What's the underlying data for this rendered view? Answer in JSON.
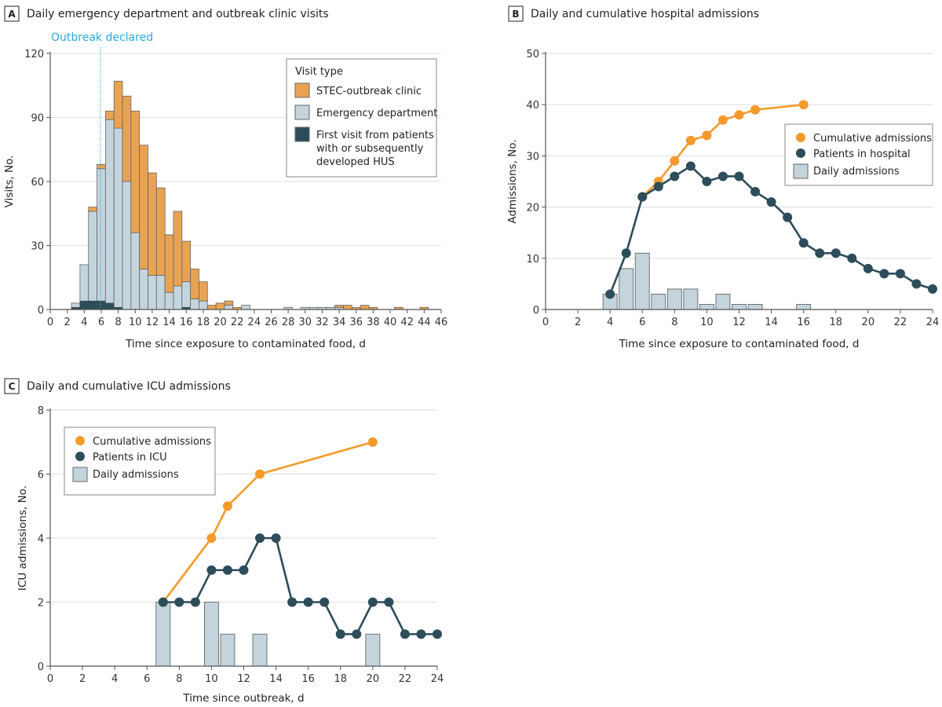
{
  "colors": {
    "stec_bar": "#e8a352",
    "ed_bar": "#c3d4dd",
    "hus_bar": "#2b4d5a",
    "cumulative_line": "#f39a2a",
    "patients_line": "#2c4d59",
    "outbreak_line": "#29a9e0",
    "grid": "#e2e2e2"
  },
  "chart_data": [
    {
      "panel": "A",
      "type": "bar",
      "stacked": true,
      "title": "Daily emergency department and outbreak clinic visits",
      "xlabel": "Time since exposure to contaminated food, d",
      "ylabel": "Visits, No.",
      "xlim": [
        0,
        46
      ],
      "ylim": [
        0,
        120
      ],
      "xticks": [
        "0",
        "2",
        "4",
        "6",
        "8",
        "10",
        "12",
        "14",
        "16",
        "18",
        "20",
        "22",
        "24",
        "26",
        "28",
        "30",
        "32",
        "34",
        "36",
        "38",
        "40",
        "42",
        "44",
        "46"
      ],
      "yticks": [
        "0",
        "30",
        "60",
        "90",
        "120"
      ],
      "grid": "horizontal",
      "annotation": {
        "label": "Outbreak declared",
        "x": 6
      },
      "legend": {
        "title": "Visit type",
        "placement": "top-right",
        "entries": [
          "STEC-outbreak clinic",
          "Emergency department",
          "First visit from patients",
          "with or subsequently",
          "developed HUS"
        ]
      },
      "x": [
        3,
        4,
        5,
        6,
        7,
        8,
        9,
        10,
        11,
        12,
        13,
        14,
        15,
        16,
        17,
        18,
        19,
        20,
        21,
        22,
        23,
        28,
        30,
        31,
        32,
        33,
        34,
        35,
        36,
        37,
        38,
        41,
        44
      ],
      "series": [
        {
          "name": "Emergency department",
          "values": [
            3,
            21,
            46,
            66,
            89,
            85,
            60,
            36,
            19,
            16,
            16,
            8,
            11,
            13,
            5,
            4,
            0,
            0,
            2,
            0,
            2,
            1,
            1,
            1,
            1,
            1,
            1,
            0,
            0,
            0,
            0,
            0,
            0
          ]
        },
        {
          "name": "STEC-outbreak clinic",
          "values": [
            0,
            0,
            2,
            2,
            4,
            22,
            40,
            57,
            58,
            48,
            41,
            27,
            35,
            19,
            14,
            9,
            2,
            3,
            2,
            1,
            0,
            0,
            0,
            0,
            0,
            0,
            1,
            2,
            1,
            2,
            1,
            1,
            1
          ]
        },
        {
          "name": "First visit from patients with or subsequently developed HUS",
          "values": [
            1,
            4,
            4,
            4,
            3,
            1,
            0,
            0,
            0,
            0,
            0,
            0,
            0,
            1,
            0,
            0,
            0,
            0,
            0,
            0,
            0,
            0,
            0,
            0,
            0,
            0,
            0,
            0,
            0,
            0,
            0,
            0,
            0
          ]
        }
      ]
    },
    {
      "panel": "B",
      "type": "bar+line",
      "title": "Daily and cumulative hospital admissions",
      "xlabel": "Time since exposure to contaminated food, d",
      "ylabel": "Admissions, No.",
      "xlim": [
        0,
        24
      ],
      "ylim": [
        0,
        50
      ],
      "xticks": [
        "0",
        "2",
        "4",
        "6",
        "8",
        "10",
        "12",
        "14",
        "16",
        "18",
        "20",
        "22",
        "24"
      ],
      "yticks": [
        "0",
        "10",
        "20",
        "30",
        "40",
        "50"
      ],
      "grid": "horizontal",
      "legend": {
        "placement": "right",
        "entries": [
          "Cumulative admissions",
          "Patients in hospital",
          "Daily admissions"
        ]
      },
      "cumulative": {
        "name": "Cumulative admissions",
        "x": [
          6,
          7,
          8,
          9,
          10,
          11,
          12,
          13,
          16
        ],
        "values": [
          22,
          25,
          29,
          33,
          34,
          37,
          38,
          39,
          40
        ]
      },
      "patients": {
        "name": "Patients in hospital",
        "x": [
          4,
          5,
          6,
          7,
          8,
          9,
          10,
          11,
          12,
          13,
          14,
          15,
          16,
          17,
          18,
          19,
          20,
          21,
          22,
          23,
          24
        ],
        "values": [
          3,
          11,
          22,
          24,
          26,
          28,
          25,
          26,
          26,
          23,
          21,
          18,
          13,
          11,
          11,
          10,
          8,
          7,
          7,
          5,
          4
        ]
      },
      "daily": {
        "name": "Daily admissions",
        "x": [
          4,
          5,
          6,
          7,
          8,
          9,
          10,
          11,
          12,
          13,
          16
        ],
        "values": [
          3,
          8,
          11,
          3,
          4,
          4,
          1,
          3,
          1,
          1,
          1
        ]
      }
    },
    {
      "panel": "C",
      "type": "bar+line",
      "title": "Daily and cumulative ICU admissions",
      "xlabel": "Time since outbreak, d",
      "ylabel": "ICU admissions, No.",
      "xlim": [
        0,
        24
      ],
      "ylim": [
        0,
        8
      ],
      "xticks": [
        "0",
        "2",
        "4",
        "6",
        "8",
        "10",
        "12",
        "14",
        "16",
        "18",
        "20",
        "22",
        "24"
      ],
      "yticks": [
        "0",
        "2",
        "4",
        "6",
        "8"
      ],
      "grid": "horizontal",
      "legend": {
        "placement": "top-left",
        "entries": [
          "Cumulative admissions",
          "Patients in ICU",
          "Daily admissions"
        ]
      },
      "cumulative": {
        "name": "Cumulative admissions",
        "x": [
          7,
          10,
          11,
          13,
          20
        ],
        "values": [
          2,
          4,
          5,
          6,
          7
        ]
      },
      "patients": {
        "name": "Patients in ICU",
        "x": [
          7,
          8,
          9,
          10,
          11,
          12,
          13,
          14,
          15,
          16,
          17,
          18,
          19,
          20,
          21,
          22,
          23,
          24
        ],
        "values": [
          2,
          2,
          2,
          3,
          3,
          3,
          4,
          4,
          2,
          2,
          2,
          1,
          1,
          2,
          2,
          1,
          1,
          1
        ]
      },
      "daily": {
        "name": "Daily admissions",
        "x": [
          7,
          10,
          11,
          13,
          20
        ],
        "values": [
          2,
          2,
          1,
          1,
          1
        ]
      }
    }
  ]
}
